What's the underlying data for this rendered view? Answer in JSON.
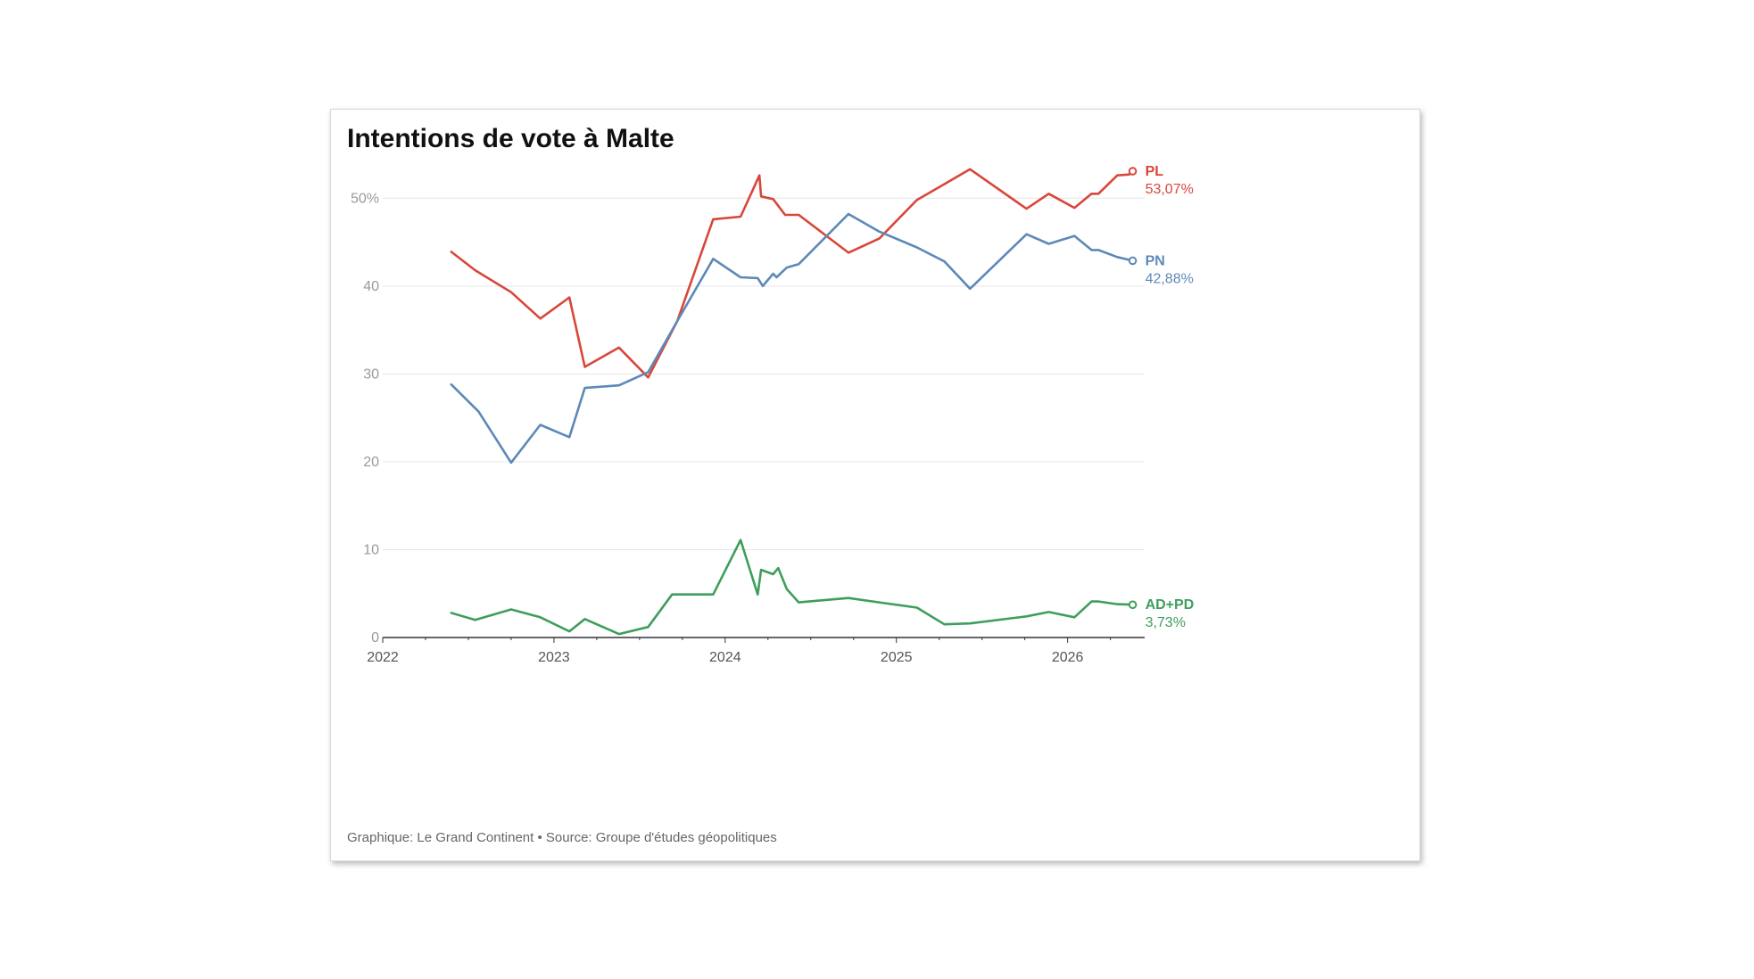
{
  "chart_data": {
    "type": "line",
    "title": "Intentions de vote à Malte",
    "source": "Graphique: Le Grand Continent • Source: Groupe d'études géopolitiques",
    "xlabel": "",
    "ylabel": "",
    "xlim": [
      2022.0,
      2026.45
    ],
    "ylim": [
      0,
      55
    ],
    "x_ticks": [
      "2022",
      "2023",
      "2024",
      "2025",
      "2026"
    ],
    "y_ticks": [
      "0",
      "10",
      "20",
      "30",
      "40",
      "50%"
    ],
    "grid": true,
    "series": [
      {
        "name": "PL",
        "end_label": "53,07%",
        "color": "#d9463b",
        "points": [
          [
            2022.4,
            43.9
          ],
          [
            2022.54,
            41.8
          ],
          [
            2022.75,
            39.3
          ],
          [
            2022.92,
            36.3
          ],
          [
            2023.09,
            38.7
          ],
          [
            2023.18,
            30.8
          ],
          [
            2023.38,
            33.0
          ],
          [
            2023.55,
            29.6
          ],
          [
            2023.72,
            36.0
          ],
          [
            2023.93,
            47.6
          ],
          [
            2024.09,
            47.9
          ],
          [
            2024.2,
            52.6
          ],
          [
            2024.21,
            50.2
          ],
          [
            2024.28,
            49.9
          ],
          [
            2024.35,
            48.1
          ],
          [
            2024.43,
            48.1
          ],
          [
            2024.72,
            43.8
          ],
          [
            2024.9,
            45.4
          ],
          [
            2025.12,
            49.8
          ],
          [
            2025.28,
            51.6
          ],
          [
            2025.43,
            53.3
          ],
          [
            2025.76,
            48.8
          ],
          [
            2025.89,
            50.5
          ],
          [
            2026.04,
            48.9
          ],
          [
            2026.14,
            50.5
          ],
          [
            2026.18,
            50.5
          ],
          [
            2026.29,
            52.6
          ],
          [
            2026.36,
            52.7
          ],
          [
            2026.38,
            53.07
          ]
        ]
      },
      {
        "name": "PN",
        "end_label": "42,88%",
        "color": "#5d89b8",
        "points": [
          [
            2022.4,
            28.8
          ],
          [
            2022.56,
            25.7
          ],
          [
            2022.75,
            19.9
          ],
          [
            2022.92,
            24.2
          ],
          [
            2023.09,
            22.8
          ],
          [
            2023.18,
            28.4
          ],
          [
            2023.38,
            28.7
          ],
          [
            2023.55,
            30.2
          ],
          [
            2023.72,
            36.0
          ],
          [
            2023.93,
            43.1
          ],
          [
            2024.09,
            41.0
          ],
          [
            2024.19,
            40.9
          ],
          [
            2024.22,
            40.0
          ],
          [
            2024.28,
            41.4
          ],
          [
            2024.3,
            41.0
          ],
          [
            2024.36,
            42.1
          ],
          [
            2024.43,
            42.5
          ],
          [
            2024.72,
            48.2
          ],
          [
            2024.9,
            46.2
          ],
          [
            2025.12,
            44.4
          ],
          [
            2025.28,
            42.8
          ],
          [
            2025.43,
            39.7
          ],
          [
            2025.76,
            45.9
          ],
          [
            2025.89,
            44.8
          ],
          [
            2026.04,
            45.7
          ],
          [
            2026.14,
            44.1
          ],
          [
            2026.18,
            44.1
          ],
          [
            2026.29,
            43.3
          ],
          [
            2026.38,
            42.88
          ]
        ]
      },
      {
        "name": "AD+PD",
        "end_label": "3,73%",
        "color": "#3e9e5c",
        "points": [
          [
            2022.4,
            2.8
          ],
          [
            2022.54,
            2.0
          ],
          [
            2022.75,
            3.2
          ],
          [
            2022.92,
            2.3
          ],
          [
            2023.09,
            0.7
          ],
          [
            2023.18,
            2.1
          ],
          [
            2023.38,
            0.4
          ],
          [
            2023.55,
            1.2
          ],
          [
            2023.69,
            4.9
          ],
          [
            2023.93,
            4.9
          ],
          [
            2024.09,
            11.1
          ],
          [
            2024.19,
            4.9
          ],
          [
            2024.21,
            7.7
          ],
          [
            2024.28,
            7.2
          ],
          [
            2024.31,
            7.9
          ],
          [
            2024.36,
            5.5
          ],
          [
            2024.43,
            4.0
          ],
          [
            2024.72,
            4.5
          ],
          [
            2024.9,
            4.0
          ],
          [
            2025.12,
            3.4
          ],
          [
            2025.28,
            1.5
          ],
          [
            2025.43,
            1.6
          ],
          [
            2025.76,
            2.4
          ],
          [
            2025.89,
            2.9
          ],
          [
            2026.04,
            2.3
          ],
          [
            2026.14,
            4.1
          ],
          [
            2026.18,
            4.1
          ],
          [
            2026.29,
            3.8
          ],
          [
            2026.38,
            3.73
          ]
        ]
      }
    ]
  }
}
